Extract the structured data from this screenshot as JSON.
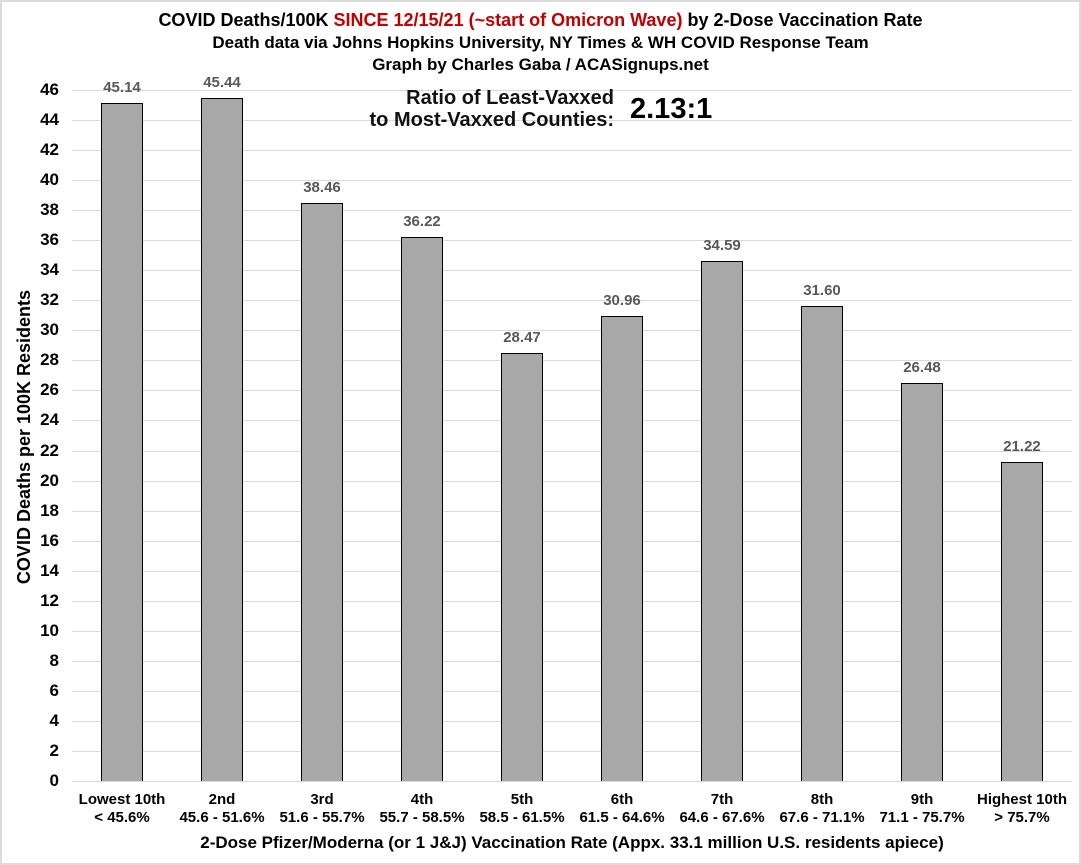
{
  "title": {
    "line1_part1": "COVID Deaths/100K ",
    "line1_part2_red": "SINCE 12/15/21 (~start of Omicron Wave)",
    "line1_part3": " by 2-Dose Vaccination Rate",
    "line2": "Death data via Johns Hopkins University, NY Times & WH COVID Response Team",
    "line3": "Graph by Charles Gaba / ACASignups.net"
  },
  "annotation": {
    "label_line1": "Ratio of Least-Vaxxed",
    "label_line2": "to Most-Vaxxed Counties:",
    "value": "2.13:1"
  },
  "chart_data": {
    "type": "bar",
    "title": "COVID Deaths/100K SINCE 12/15/21 (~start of Omicron Wave) by 2-Dose Vaccination Rate",
    "subtitle1": "Death data via Johns Hopkins University, NY Times & WH COVID Response Team",
    "subtitle2": "Graph by Charles Gaba / ACASignups.net",
    "xlabel": "2-Dose Pfizer/Moderna (or 1 J&J) Vaccination Rate (Appx. 33.1 million U.S. residents apiece)",
    "ylabel": "COVID Deaths per 100K Residents",
    "ylim": [
      0,
      46
    ],
    "ytick_step": 2,
    "grid": true,
    "legend": "none",
    "categories": [
      {
        "decile": "Lowest 10th",
        "range": "< 45.6%"
      },
      {
        "decile": "2nd",
        "range": "45.6 - 51.6%"
      },
      {
        "decile": "3rd",
        "range": "51.6 - 55.7%"
      },
      {
        "decile": "4th",
        "range": "55.7 - 58.5%"
      },
      {
        "decile": "5th",
        "range": "58.5 - 61.5%"
      },
      {
        "decile": "6th",
        "range": "61.5 - 64.6%"
      },
      {
        "decile": "7th",
        "range": "64.6 - 67.6%"
      },
      {
        "decile": "8th",
        "range": "67.6 - 71.1%"
      },
      {
        "decile": "9th",
        "range": "71.1 - 75.7%"
      },
      {
        "decile": "Highest 10th",
        "range": "> 75.7%"
      }
    ],
    "values": [
      45.14,
      45.44,
      38.46,
      36.22,
      28.47,
      30.96,
      34.59,
      31.6,
      26.48,
      21.22
    ],
    "value_labels": [
      "45.14",
      "45.44",
      "38.46",
      "36.22",
      "28.47",
      "30.96",
      "34.59",
      "31.60",
      "26.48",
      "21.22"
    ],
    "annotation_value": "2.13:1",
    "colors": {
      "bar_fill": "#a8a8a8",
      "bar_border": "#000000",
      "gridline": "#d9d9d9",
      "data_label": "#595959",
      "title_red": "#c00000",
      "text": "#000000"
    }
  }
}
